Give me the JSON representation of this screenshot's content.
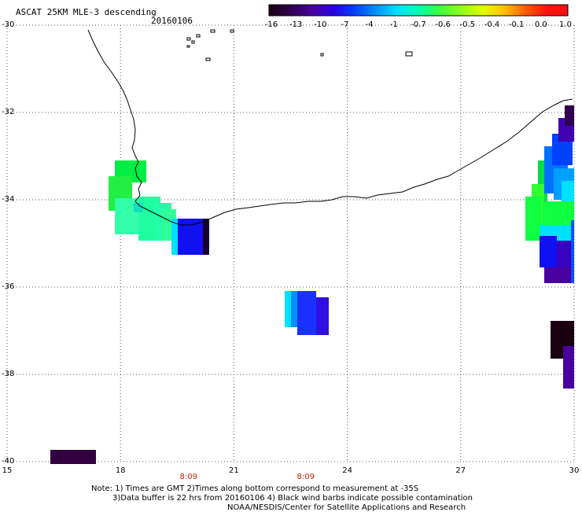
{
  "header": {
    "title": "ASCAT 25KM MLE-3 descending",
    "date": "20160106"
  },
  "colorbar": {
    "labels": [
      "-16",
      "-13",
      "-10",
      "-7",
      "-4",
      "-1",
      "-0.7",
      "-0.6",
      "-0.5",
      "-0.4",
      "-0.1",
      "0.0",
      "1.0"
    ],
    "colors": [
      "#1a0010",
      "#300050",
      "#4a00a0",
      "#2a00e0",
      "#0040ff",
      "#0090ff",
      "#00e0ff",
      "#00ffb0",
      "#40ff40",
      "#90ff20",
      "#e0ff00",
      "#ffc000",
      "#ff6000",
      "#ff1010"
    ]
  },
  "map": {
    "lat_labels": [
      "-30",
      "-32",
      "-34",
      "-36",
      "-38",
      "-40"
    ],
    "lon_labels": [
      "15",
      "18",
      "21",
      "24",
      "27",
      "30"
    ],
    "pass_times": [
      {
        "lon": 19.8,
        "label": "8:09"
      },
      {
        "lon": 22.9,
        "label": "8:09"
      }
    ]
  },
  "notes": {
    "line1": "Note: 1) Times are GMT 2)Times along bottom correspond to measurement at -35S",
    "line2": "3)Data buffer is 22 hrs from 20160106 4) Black wind barbs indicate possible contamination",
    "line3": "NOAA/NESDIS/Center for Satellite Applications and Research"
  }
}
